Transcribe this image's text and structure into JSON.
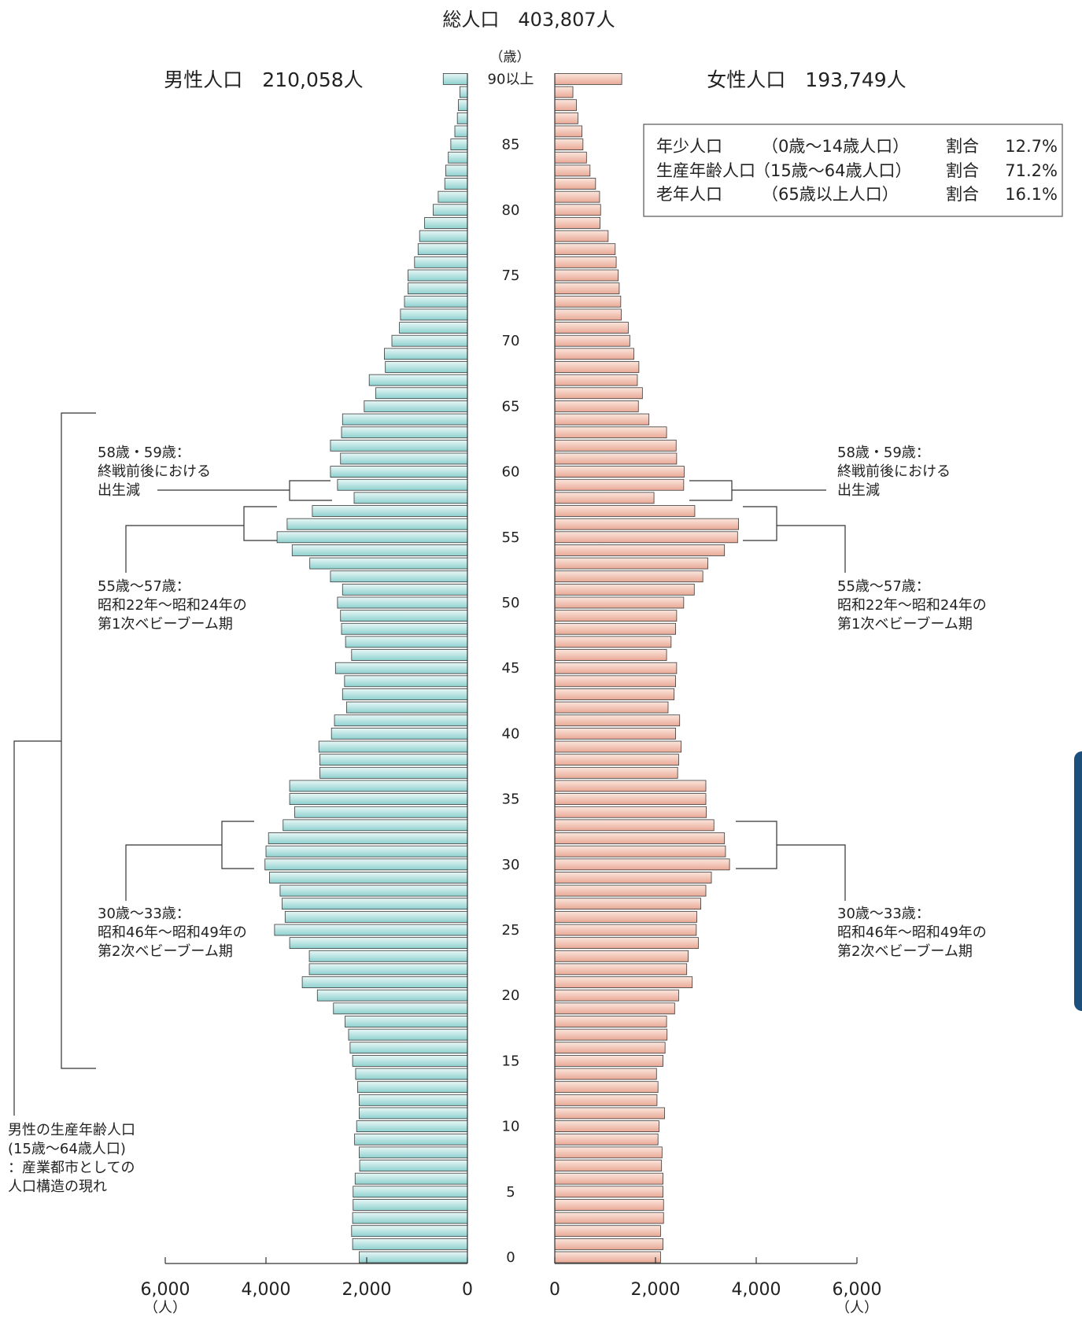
{
  "chart_data": {
    "type": "bar",
    "subtype": "population-pyramid",
    "title": "総人口　403,807人",
    "age_unit_label": "（歳）",
    "count_unit_label": "（人）",
    "age_tick_labels": [
      "90以上",
      "85",
      "80",
      "75",
      "70",
      "65",
      "60",
      "55",
      "50",
      "45",
      "40",
      "35",
      "30",
      "25",
      "20",
      "15",
      "10",
      "5",
      "0"
    ],
    "categories": [
      "0",
      "1",
      "2",
      "3",
      "4",
      "5",
      "6",
      "7",
      "8",
      "9",
      "10",
      "11",
      "12",
      "13",
      "14",
      "15",
      "16",
      "17",
      "18",
      "19",
      "20",
      "21",
      "22",
      "23",
      "24",
      "25",
      "26",
      "27",
      "28",
      "29",
      "30",
      "31",
      "32",
      "33",
      "34",
      "35",
      "36",
      "37",
      "38",
      "39",
      "40",
      "41",
      "42",
      "43",
      "44",
      "45",
      "46",
      "47",
      "48",
      "49",
      "50",
      "51",
      "52",
      "53",
      "54",
      "55",
      "56",
      "57",
      "58",
      "59",
      "60",
      "61",
      "62",
      "63",
      "64",
      "65",
      "66",
      "67",
      "68",
      "69",
      "70",
      "71",
      "72",
      "73",
      "74",
      "75",
      "76",
      "77",
      "78",
      "79",
      "80",
      "81",
      "82",
      "83",
      "84",
      "85",
      "86",
      "87",
      "88",
      "89",
      "90以上"
    ],
    "x_axis_ticks": [
      "6,000",
      "4,000",
      "2,000",
      "0",
      "0",
      "2,000",
      "4,000",
      "6,000"
    ],
    "xlim": [
      0,
      6000
    ],
    "series": [
      {
        "name": "男性人口　210,058人",
        "side": "left",
        "color": "#a8dedd",
        "values": [
          2150,
          2280,
          2300,
          2280,
          2270,
          2270,
          2230,
          2140,
          2150,
          2240,
          2200,
          2150,
          2150,
          2180,
          2220,
          2280,
          2330,
          2360,
          2430,
          2660,
          2980,
          3280,
          3140,
          3140,
          3530,
          3830,
          3620,
          3680,
          3720,
          3930,
          4020,
          4000,
          3950,
          3660,
          3430,
          3530,
          3530,
          2930,
          2930,
          2950,
          2700,
          2640,
          2400,
          2480,
          2440,
          2620,
          2300,
          2420,
          2500,
          2520,
          2580,
          2480,
          2720,
          3130,
          3480,
          3780,
          3580,
          3080,
          2250,
          2580,
          2720,
          2520,
          2720,
          2500,
          2480,
          2050,
          1820,
          1950,
          1630,
          1650,
          1500,
          1350,
          1330,
          1250,
          1180,
          1180,
          1050,
          980,
          950,
          850,
          680,
          580,
          450,
          430,
          380,
          330,
          250,
          200,
          180,
          150,
          480
        ]
      },
      {
        "name": "女性人口　193,749人",
        "side": "right",
        "color": "#f4c4b4",
        "values": [
          2100,
          2150,
          2100,
          2160,
          2160,
          2150,
          2150,
          2120,
          2130,
          2050,
          2070,
          2180,
          2030,
          2050,
          2020,
          2150,
          2190,
          2230,
          2220,
          2380,
          2460,
          2730,
          2620,
          2650,
          2850,
          2810,
          2820,
          2900,
          3000,
          3110,
          3470,
          3390,
          3370,
          3160,
          3010,
          3000,
          3000,
          2440,
          2460,
          2510,
          2400,
          2480,
          2250,
          2370,
          2400,
          2420,
          2220,
          2310,
          2400,
          2420,
          2560,
          2770,
          2940,
          3040,
          3370,
          3630,
          3650,
          2780,
          1970,
          2560,
          2570,
          2420,
          2410,
          2220,
          1870,
          1660,
          1740,
          1640,
          1670,
          1570,
          1490,
          1460,
          1320,
          1310,
          1280,
          1260,
          1220,
          1200,
          1060,
          900,
          910,
          890,
          810,
          700,
          630,
          560,
          540,
          460,
          430,
          360,
          1330
        ]
      }
    ],
    "legend": {
      "rows": [
        {
          "name": "年少人口",
          "range": "（0歳～14歳人口）",
          "ratio_label": "割合",
          "ratio": "12.7%"
        },
        {
          "name": "生産年齢人口",
          "range": "（15歳～64歳人口）",
          "ratio_label": "割合",
          "ratio": "71.2%"
        },
        {
          "name": "老年人口",
          "range": "（65歳以上人口）",
          "ratio_label": "割合",
          "ratio": "16.1%"
        }
      ],
      "position": "top-right"
    },
    "annotations": {
      "left_58_59": [
        "58歳・59歳：",
        "終戦前後における",
        "出生減"
      ],
      "left_55_57": [
        "55歳～57歳：",
        "昭和22年～昭和24年の",
        "第1次ベビーブーム期"
      ],
      "left_30_33": [
        "30歳～33歳：",
        "昭和46年～昭和49年の",
        "第2次ベビーブーム期"
      ],
      "left_working": [
        "男性の生産年齢人口",
        "(15歳～64歳人口)",
        "：産業都市としての",
        "人口構造の現れ"
      ],
      "right_58_59": [
        "58歳・59歳：",
        "終戦前後における",
        "出生減"
      ],
      "right_55_57": [
        "55歳～57歳：",
        "昭和22年～昭和24年の",
        "第1次ベビーブーム期"
      ],
      "right_30_33": [
        "30歳～33歳：",
        "昭和46年～昭和49年の",
        "第2次ベビーブーム期"
      ]
    },
    "grid": false
  }
}
